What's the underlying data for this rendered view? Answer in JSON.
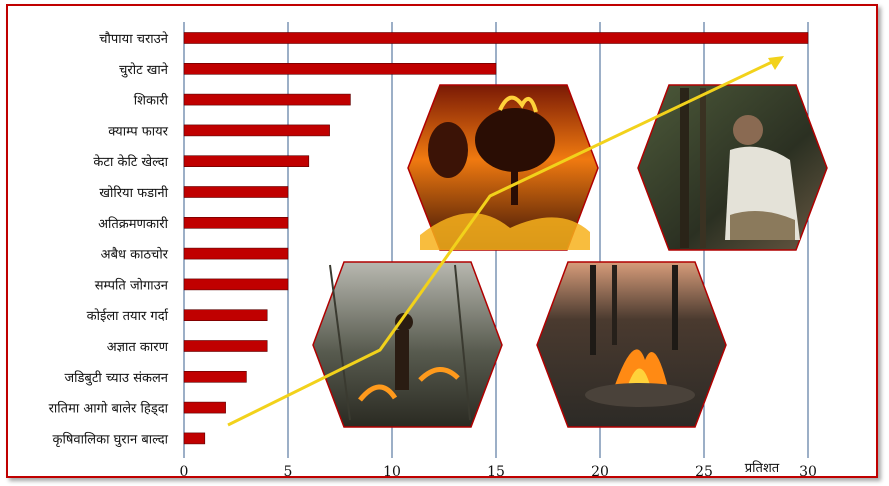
{
  "chart_data": {
    "type": "bar",
    "orientation": "horizontal",
    "categories": [
      "चौपाया चराउने",
      "चुरोट खाने",
      "शिकारी",
      "क्याम्प फायर",
      "केटा केटि खेल्दा",
      "खोरिया फडानी",
      "अतिक्रमणकारी",
      "अबैध काठचोर",
      "सम्पति जोगाउन",
      "कोईला तयार गर्दा",
      "अज्ञात कारण",
      "जडिबुटी च्याउ संकलन",
      "रातिमा आगो बालेर हिड्दा",
      "कृषिवालिका घुरान बाल्दा"
    ],
    "values": [
      30,
      15,
      8,
      7,
      6,
      5,
      5,
      5,
      5,
      4,
      4,
      3,
      2,
      1
    ],
    "xlim": [
      0,
      32
    ],
    "xticks": [
      0,
      5,
      10,
      15,
      20,
      25,
      30
    ],
    "xlabel": "प्रतिशत",
    "grid": "vertical",
    "bar_color": "#c00000",
    "trend_color": "#f2d21b"
  }
}
